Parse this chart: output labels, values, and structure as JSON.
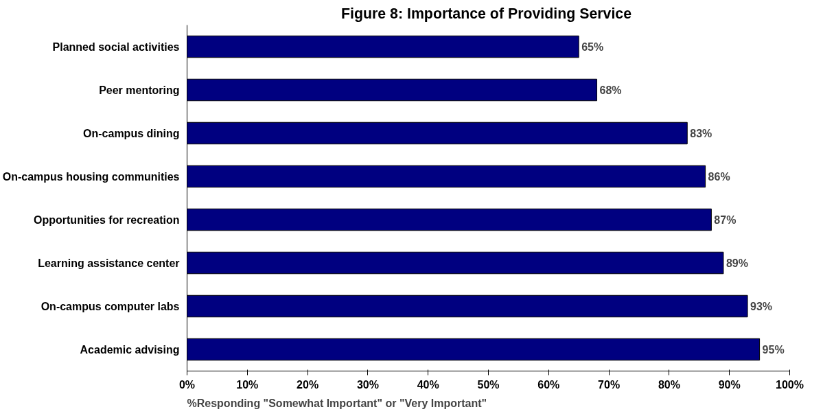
{
  "chart_data": {
    "type": "bar",
    "orientation": "horizontal",
    "title": "Figure 8:  Importance of Providing Service",
    "xlabel": "%Responding \"Somewhat Important\" or \"Very Important\"",
    "categories": [
      "Planned social activities",
      "Peer mentoring",
      "On-campus dining",
      "On-campus housing communities",
      "Opportunities for recreation",
      "Learning assistance center",
      "On-campus computer labs",
      "Academic advising"
    ],
    "values": [
      65,
      68,
      83,
      86,
      87,
      89,
      93,
      95
    ],
    "value_labels": [
      "65%",
      "68%",
      "83%",
      "86%",
      "87%",
      "89%",
      "93%",
      "95%"
    ],
    "color": "#000080",
    "xlim": [
      0,
      100
    ],
    "xticks": [
      {
        "value": 0,
        "label": "0%"
      },
      {
        "value": 10,
        "label": "10%"
      },
      {
        "value": 20,
        "label": "20%"
      },
      {
        "value": 30,
        "label": "30%"
      },
      {
        "value": 40,
        "label": "40%"
      },
      {
        "value": 50,
        "label": "50%"
      },
      {
        "value": 60,
        "label": "60%"
      },
      {
        "value": 70,
        "label": "70%"
      },
      {
        "value": 80,
        "label": "80%"
      },
      {
        "value": 90,
        "label": "90%"
      },
      {
        "value": 100,
        "label": "100%"
      }
    ],
    "grid": false
  }
}
